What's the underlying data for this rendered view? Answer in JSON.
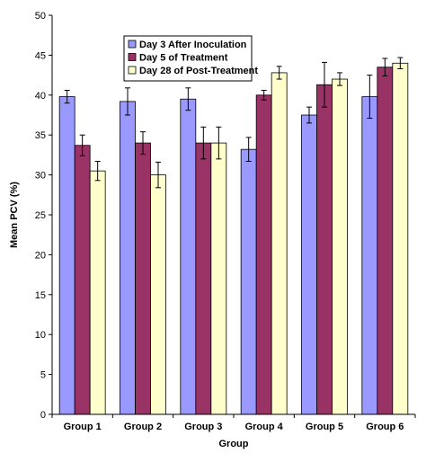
{
  "chart_data": {
    "type": "bar",
    "title": "",
    "xlabel": "Group",
    "ylabel": "Mean PCV (%)",
    "ylim": [
      0,
      50
    ],
    "yticks": [
      0,
      5,
      10,
      15,
      20,
      25,
      30,
      35,
      40,
      45,
      50
    ],
    "categories": [
      "Group 1",
      "Group 2",
      "Group 3",
      "Group 4",
      "Group 5",
      "Group 6"
    ],
    "grid": false,
    "legend_position": "top-center",
    "series": [
      {
        "name": "Day 3 After Inoculation",
        "color": "#9999ff",
        "values": [
          39.8,
          39.2,
          39.5,
          33.2,
          37.5,
          39.8
        ],
        "errors": [
          0.8,
          1.7,
          1.4,
          1.5,
          1.0,
          2.7
        ]
      },
      {
        "name": "Day 5 of Treatment",
        "color": "#993366",
        "values": [
          33.7,
          34.0,
          34.0,
          40.0,
          41.3,
          43.5
        ],
        "errors": [
          1.3,
          1.4,
          2.0,
          0.6,
          2.8,
          1.1
        ]
      },
      {
        "name": "Day 28 of Post-Treatment",
        "color": "#ffffcc",
        "values": [
          30.5,
          30.0,
          34.0,
          42.8,
          42.0,
          44.0
        ],
        "errors": [
          1.2,
          1.6,
          2.0,
          0.8,
          0.8,
          0.7
        ]
      }
    ]
  }
}
